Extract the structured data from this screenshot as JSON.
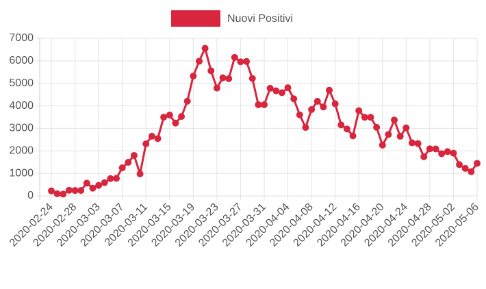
{
  "chart_data": {
    "type": "line",
    "categories": [
      "2020-02-24",
      null,
      null,
      null,
      "2020-02-28",
      null,
      null,
      null,
      "2020-03-03",
      null,
      null,
      null,
      "2020-03-07",
      null,
      null,
      null,
      "2020-03-11",
      null,
      null,
      null,
      "2020-03-15",
      null,
      null,
      null,
      "2020-03-19",
      null,
      null,
      null,
      "2020-03-23",
      null,
      null,
      null,
      "2020-03-27",
      null,
      null,
      null,
      "2020-03-31",
      null,
      null,
      null,
      "2020-04-04",
      null,
      null,
      null,
      "2020-04-08",
      null,
      null,
      null,
      "2020-04-12",
      null,
      null,
      null,
      "2020-04-16",
      null,
      null,
      null,
      "2020-04-20",
      null,
      null,
      null,
      "2020-04-24",
      null,
      null,
      null,
      "2020-04-28",
      null,
      null,
      null,
      "2020-05-02",
      null,
      null,
      null,
      "2020-05-06"
    ],
    "series": [
      {
        "name": "Nuovi Positivi",
        "color": "#d7263d",
        "values": [
          221,
          93,
          78,
          250,
          238,
          240,
          566,
          342,
          466,
          587,
          769,
          778,
          1247,
          1492,
          1797,
          977,
          2313,
          2651,
          2547,
          3497,
          3590,
          3233,
          3526,
          4207,
          5322,
          5986,
          6557,
          5560,
          4789,
          5249,
          5210,
          6153,
          5959,
          5974,
          5217,
          4050,
          4053,
          4782,
          4668,
          4585,
          4805,
          4316,
          3599,
          3039,
          3836,
          4204,
          3951,
          4694,
          4092,
          3153,
          2972,
          2667,
          3786,
          3493,
          3491,
          3047,
          2256,
          2729,
          3370,
          2646,
          3021,
          2357,
          2324,
          1739,
          2091,
          2086,
          1872,
          1965,
          1900,
          1389,
          1221,
          1075,
          1444
        ]
      }
    ],
    "ylim": [
      0,
      7000
    ],
    "yticks": [
      0,
      1000,
      2000,
      3000,
      4000,
      5000,
      6000,
      7000
    ],
    "grid": true,
    "legend": "top"
  }
}
